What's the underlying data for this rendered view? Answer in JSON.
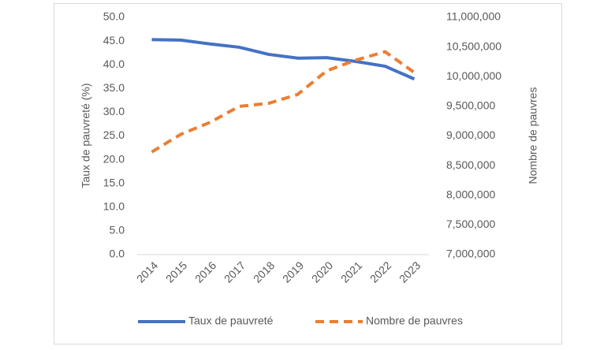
{
  "chart_data": {
    "type": "line",
    "categories": [
      "2014",
      "2015",
      "2016",
      "2017",
      "2018",
      "2019",
      "2020",
      "2021",
      "2022",
      "2023"
    ],
    "y_label": "Taux de pauvreté  (%)",
    "y2_label": "Nombre de pauvres",
    "series": [
      {
        "name": "Taux de pauvreté",
        "color": "#4472c4",
        "values": [
          45.3,
          45.2,
          44.4,
          43.7,
          42.2,
          41.4,
          41.5,
          40.7,
          39.7,
          37.0
        ]
      },
      {
        "name": "Nombre de pauvres",
        "color": "#ed7d31",
        "axis": "y2",
        "dashed": true,
        "values": [
          8730000,
          9030000,
          9230000,
          9500000,
          9550000,
          9700000,
          10100000,
          10280000,
          10420000,
          10070000
        ]
      }
    ],
    "ylim": [
      0,
      50
    ],
    "yticks": [
      {
        "value": 0,
        "label": "0.0"
      },
      {
        "value": 5,
        "label": "5.0"
      },
      {
        "value": 10,
        "label": "10.0"
      },
      {
        "value": 15,
        "label": "15.0"
      },
      {
        "value": 20,
        "label": "20.0"
      },
      {
        "value": 25,
        "label": "25.0"
      },
      {
        "value": 30,
        "label": "30.0"
      },
      {
        "value": 35,
        "label": "35.0"
      },
      {
        "value": 40,
        "label": "40.0"
      },
      {
        "value": 45,
        "label": "45.0"
      },
      {
        "value": 50,
        "label": "50.0"
      }
    ],
    "y2lim": [
      7000000,
      11000000
    ],
    "y2ticks": [
      {
        "value": 7000000,
        "label": "7,000,000"
      },
      {
        "value": 7500000,
        "label": "7,500,000"
      },
      {
        "value": 8000000,
        "label": "8,000,000"
      },
      {
        "value": 8500000,
        "label": "8,500,000"
      },
      {
        "value": 9000000,
        "label": "9,000,000"
      },
      {
        "value": 9500000,
        "label": "9,500,000"
      },
      {
        "value": 10000000,
        "label": "10,000,000"
      },
      {
        "value": 10500000,
        "label": "10,500,000"
      },
      {
        "value": 11000000,
        "label": "11,000,000"
      }
    ],
    "grid": false,
    "legend": "bottom"
  }
}
